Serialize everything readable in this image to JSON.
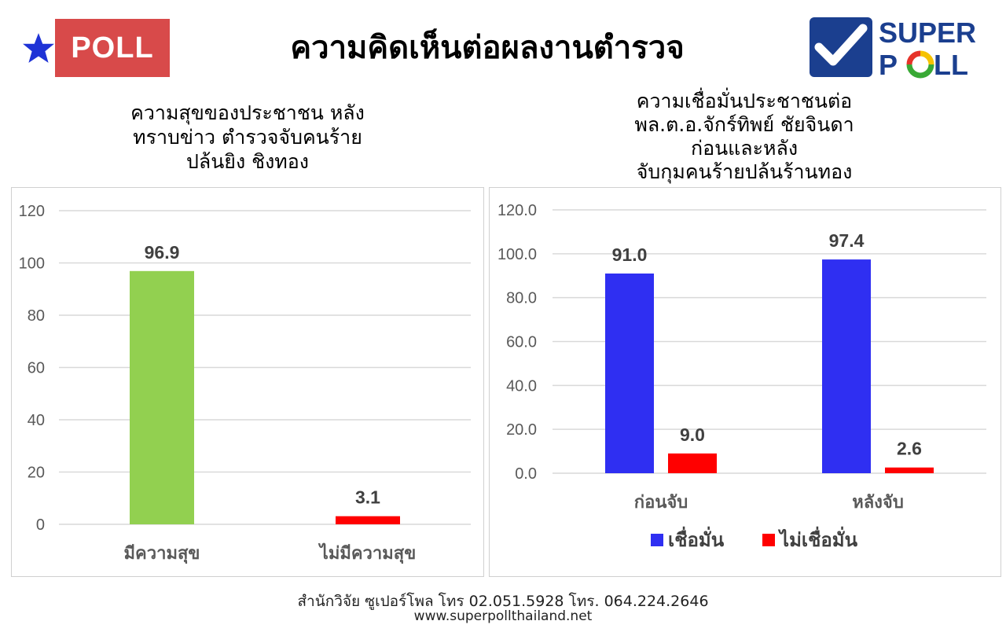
{
  "header": {
    "badge": "POLL",
    "title": "ความคิดเห็นต่อผลงานตำรวจ",
    "logo_line1": "SUPER",
    "logo_line2_a": "P",
    "logo_line2_b": "LL"
  },
  "colors": {
    "badge_red": "#d84a4a",
    "star_blue": "#1f33d6",
    "logo_blue": "#1b3f8f",
    "green_bar": "#92d050",
    "red_bar": "#ff0000",
    "blue_bar": "#2f2ff2"
  },
  "chart_data": [
    {
      "type": "bar",
      "title_lines": [
        "ความสุขของประชาชน หลัง",
        "ทราบข่าว ตำรวจจับคนร้าย",
        "ปล้นยิง ชิงทอง"
      ],
      "categories": [
        "มีความสุข",
        "ไม่มีความสุข"
      ],
      "values": [
        96.9,
        3.1
      ],
      "value_labels": [
        "96.9",
        "3.1"
      ],
      "bar_colors": [
        "#92d050",
        "#ff0000"
      ],
      "yticks": [
        "0",
        "20",
        "40",
        "60",
        "80",
        "100",
        "120"
      ],
      "ylim": [
        0,
        120
      ],
      "grid": true
    },
    {
      "type": "bar",
      "title_lines": [
        "ความเชื่อมั่นประชาชนต่อ",
        "พล.ต.อ.จักร์ทิพย์ ชัยจินดา",
        "ก่อนและหลัง",
        "จับกุมคนร้ายปล้นร้านทอง"
      ],
      "categories": [
        "ก่อนจับ",
        "หลังจับ"
      ],
      "series": [
        {
          "name": "เชื่อมั่น",
          "values": [
            91.0,
            97.4
          ],
          "labels": [
            "91.0",
            "97.4"
          ],
          "color": "#2f2ff2"
        },
        {
          "name": "ไม่เชื่อมั่น",
          "values": [
            9.0,
            2.6
          ],
          "labels": [
            "9.0",
            "2.6"
          ],
          "color": "#ff0000"
        }
      ],
      "yticks": [
        "0.0",
        "20.0",
        "40.0",
        "60.0",
        "80.0",
        "100.0",
        "120.0"
      ],
      "ylim": [
        0,
        120
      ],
      "grid": true,
      "legend": "bottom"
    }
  ],
  "footer": {
    "line1": "สำนักวิจัย ซูเปอร์โพล โทร 02.051.5928  โทร. 064.224.2646",
    "line2": "www.superpollthailand.net"
  }
}
